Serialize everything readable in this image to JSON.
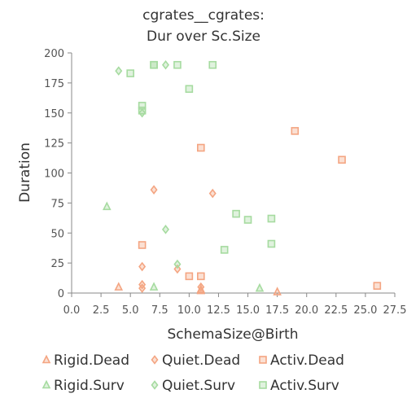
{
  "chart_data": {
    "type": "scatter",
    "title": [
      "cgrates__cgrates:",
      "Dur over Sc.Size"
    ],
    "xlabel": "SchemaSize@Birth",
    "ylabel": "Duration",
    "xlim": [
      0,
      27.5
    ],
    "ylim": [
      0,
      200
    ],
    "x_ticks": [
      "0.0",
      "2.5",
      "5.0",
      "7.5",
      "10.0",
      "12.5",
      "15.0",
      "17.5",
      "20.0",
      "22.5",
      "25.0",
      "27.5"
    ],
    "y_ticks": [
      "0",
      "25",
      "50",
      "75",
      "100",
      "125",
      "150",
      "175",
      "200"
    ],
    "grid": false,
    "legend_position": "bottom",
    "series": [
      {
        "name": "Rigid.Dead",
        "marker": "triangle",
        "color": "#f4a582",
        "points": [
          [
            4,
            5
          ],
          [
            11,
            2
          ],
          [
            11,
            3
          ],
          [
            17.5,
            1
          ]
        ]
      },
      {
        "name": "Quiet.Dead",
        "marker": "diamond",
        "color": "#f4a582",
        "points": [
          [
            6,
            4
          ],
          [
            6,
            7
          ],
          [
            6,
            22
          ],
          [
            7,
            86
          ],
          [
            9,
            20
          ],
          [
            11,
            5
          ],
          [
            12,
            83
          ]
        ]
      },
      {
        "name": "Activ.Dead",
        "marker": "square",
        "color": "#f4a582",
        "points": [
          [
            6,
            40
          ],
          [
            10,
            14
          ],
          [
            11,
            14
          ],
          [
            11,
            121
          ],
          [
            19,
            135
          ],
          [
            23,
            111
          ],
          [
            26,
            6
          ]
        ]
      },
      {
        "name": "Rigid.Surv",
        "marker": "triangle",
        "color": "#a6dba0",
        "points": [
          [
            3,
            72
          ],
          [
            7,
            5
          ],
          [
            16,
            4
          ]
        ]
      },
      {
        "name": "Quiet.Surv",
        "marker": "diamond",
        "color": "#a6dba0",
        "points": [
          [
            4,
            185
          ],
          [
            6,
            150
          ],
          [
            8,
            190
          ],
          [
            8,
            53
          ],
          [
            9,
            24
          ]
        ]
      },
      {
        "name": "Activ.Surv",
        "marker": "square",
        "color": "#a6dba0",
        "points": [
          [
            5,
            183
          ],
          [
            6,
            152
          ],
          [
            6,
            156
          ],
          [
            7,
            190
          ],
          [
            7,
            190
          ],
          [
            9,
            190
          ],
          [
            10,
            170
          ],
          [
            12,
            190
          ],
          [
            13,
            36
          ],
          [
            14,
            66
          ],
          [
            15,
            61
          ],
          [
            17,
            62
          ],
          [
            17,
            41
          ]
        ]
      }
    ]
  }
}
